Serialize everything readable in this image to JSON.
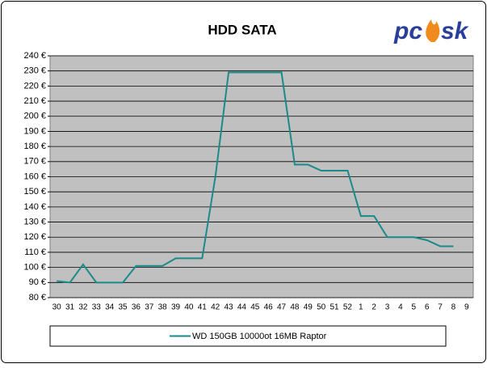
{
  "chart_data": {
    "type": "line",
    "title": "HDD SATA",
    "logo": {
      "left": "pc",
      "right": "sk"
    },
    "categories": [
      "30",
      "31",
      "32",
      "33",
      "34",
      "35",
      "36",
      "37",
      "38",
      "39",
      "40",
      "41",
      "42",
      "43",
      "44",
      "45",
      "46",
      "47",
      "48",
      "49",
      "50",
      "51",
      "52",
      "1",
      "2",
      "3",
      "4",
      "5",
      "6",
      "7",
      "8",
      "9"
    ],
    "series": [
      {
        "name": "WD 150GB 10000ot 16MB Raptor",
        "color": "#1a8a8a",
        "values": [
          91,
          90,
          102,
          90,
          90,
          90,
          101,
          101,
          101,
          106,
          106,
          106,
          160,
          229,
          229,
          229,
          229,
          229,
          168,
          168,
          164,
          164,
          164,
          134,
          134,
          120,
          120,
          120,
          118,
          114,
          114,
          null
        ]
      }
    ],
    "ylim": [
      80,
      240
    ],
    "yticks": [
      {
        "value": 80,
        "label": "80 €"
      },
      {
        "value": 90,
        "label": "90 €"
      },
      {
        "value": 100,
        "label": "100 €"
      },
      {
        "value": 110,
        "label": "110 €"
      },
      {
        "value": 120,
        "label": "120 €"
      },
      {
        "value": 130,
        "label": "130 €"
      },
      {
        "value": 140,
        "label": "140 €"
      },
      {
        "value": 150,
        "label": "150 €"
      },
      {
        "value": 160,
        "label": "160 €"
      },
      {
        "value": 170,
        "label": "170 €"
      },
      {
        "value": 180,
        "label": "180 €"
      },
      {
        "value": 190,
        "label": "190 €"
      },
      {
        "value": 200,
        "label": "200 €"
      },
      {
        "value": 210,
        "label": "210 €"
      },
      {
        "value": 220,
        "label": "220 €"
      },
      {
        "value": 230,
        "label": "230 €"
      },
      {
        "value": 240,
        "label": "240 €"
      }
    ],
    "grid": true,
    "legend": "bottom"
  }
}
